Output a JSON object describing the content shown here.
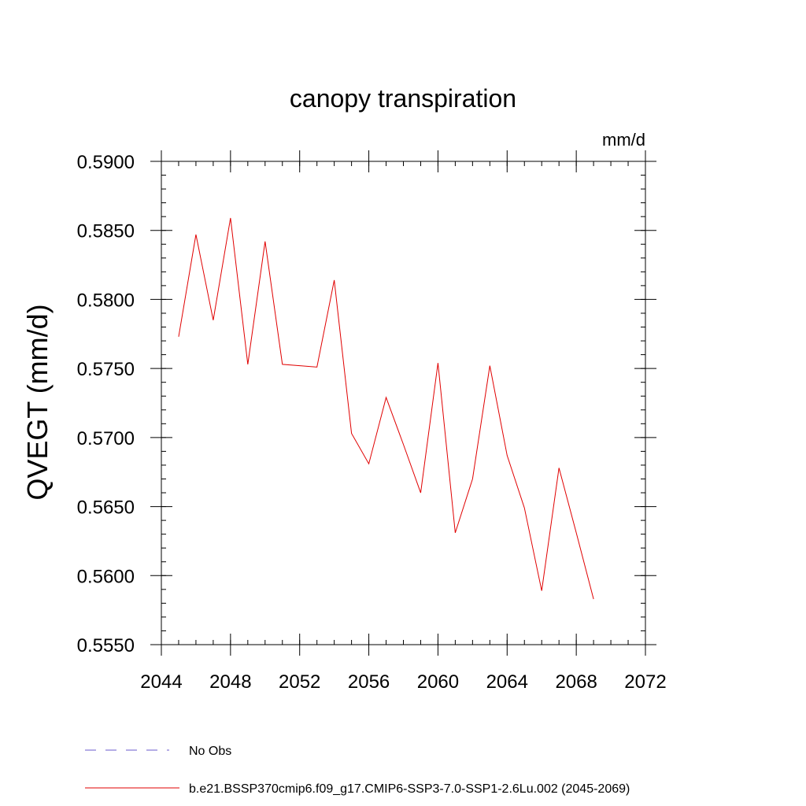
{
  "chart_data": {
    "type": "line",
    "title": "canopy transpiration",
    "units": "mm/d",
    "ylabel": "QVEGT  (mm/d)",
    "xlabel": "",
    "xlim": [
      2044,
      2072
    ],
    "ylim": [
      0.555,
      0.59
    ],
    "x_ticks": [
      2044,
      2048,
      2052,
      2056,
      2060,
      2064,
      2068,
      2072
    ],
    "x_tick_labels": [
      "2044",
      "2048",
      "2052",
      "2056",
      "2060",
      "2064",
      "2068",
      "2072"
    ],
    "y_ticks": [
      0.555,
      0.56,
      0.565,
      0.57,
      0.575,
      0.58,
      0.585,
      0.59
    ],
    "y_tick_labels": [
      "0.5550",
      "0.5600",
      "0.5650",
      "0.5700",
      "0.5750",
      "0.5800",
      "0.5850",
      "0.5900"
    ],
    "grid": false,
    "legend_position": "bottom",
    "series": [
      {
        "name": "b.e21.BSSP370cmip6.f09_g17.CMIP6-SSP3-7.0-SSP1-2.6Lu.002 (2045-2069)",
        "color": "#e00000",
        "style": "solid",
        "x": [
          2045,
          2046,
          2047,
          2048,
          2049,
          2050,
          2051,
          2052,
          2053,
          2054,
          2055,
          2056,
          2057,
          2058,
          2059,
          2060,
          2061,
          2062,
          2063,
          2064,
          2065,
          2066,
          2067,
          2068,
          2069
        ],
        "values": [
          0.5773,
          0.5847,
          0.5785,
          0.5859,
          0.5753,
          0.5842,
          0.5753,
          0.5752,
          0.5751,
          0.5814,
          0.5703,
          0.5681,
          0.5729,
          0.5695,
          0.566,
          0.5754,
          0.5631,
          0.567,
          0.5752,
          0.5687,
          0.5649,
          0.5589,
          0.5678,
          0.5631,
          0.5583
        ]
      },
      {
        "name": "No Obs",
        "color": "#6a5acd",
        "style": "dashed",
        "x": [],
        "values": []
      }
    ]
  }
}
